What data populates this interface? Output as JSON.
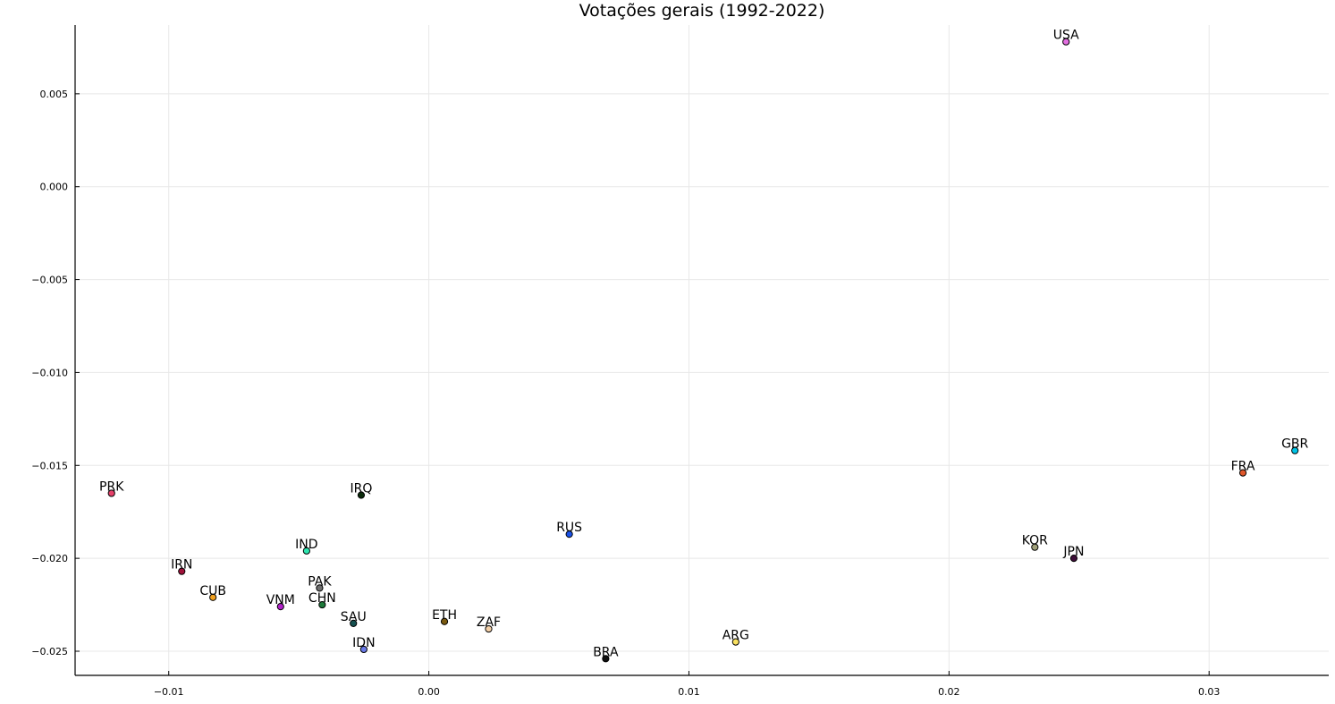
{
  "chart_data": {
    "type": "scatter",
    "title": "Votações gerais (1992-2022)",
    "xlabel": "",
    "ylabel": "",
    "xlim": [
      -0.0136,
      0.0346
    ],
    "ylim": [
      -0.0263,
      0.0087
    ],
    "xticks": [
      -0.01,
      0.0,
      0.01,
      0.02,
      0.03
    ],
    "xtick_labels": [
      "−0.01",
      "0.00",
      "0.01",
      "0.02",
      "0.03"
    ],
    "yticks": [
      0.005,
      0.0,
      -0.005,
      -0.01,
      -0.015,
      -0.02,
      -0.025
    ],
    "ytick_labels": [
      "0.005",
      "0.000",
      "−0.005",
      "−0.010",
      "−0.015",
      "−0.020",
      "−0.025"
    ],
    "grid": true,
    "legend": "none",
    "points": [
      {
        "label": "USA",
        "x": 0.0245,
        "y": 0.0078,
        "color": "#e26ee0"
      },
      {
        "label": "GBR",
        "x": 0.0333,
        "y": -0.0142,
        "color": "#00c4e6"
      },
      {
        "label": "FRA",
        "x": 0.0313,
        "y": -0.0154,
        "color": "#e0572a"
      },
      {
        "label": "KOR",
        "x": 0.0233,
        "y": -0.0194,
        "color": "#a0a07a"
      },
      {
        "label": "JPN",
        "x": 0.0248,
        "y": -0.02,
        "color": "#3d0d38"
      },
      {
        "label": "PRK",
        "x": -0.0122,
        "y": -0.0165,
        "color": "#e6406a"
      },
      {
        "label": "IRQ",
        "x": -0.0026,
        "y": -0.0166,
        "color": "#0a2a0a"
      },
      {
        "label": "RUS",
        "x": 0.0054,
        "y": -0.0187,
        "color": "#1a52e8"
      },
      {
        "label": "IND",
        "x": -0.0047,
        "y": -0.0196,
        "color": "#2ee6b0"
      },
      {
        "label": "IRN",
        "x": -0.0095,
        "y": -0.0207,
        "color": "#a0123a"
      },
      {
        "label": "PAK",
        "x": -0.0042,
        "y": -0.0216,
        "color": "#6e6e6e"
      },
      {
        "label": "CUB",
        "x": -0.0083,
        "y": -0.0221,
        "color": "#f0a020"
      },
      {
        "label": "VNM",
        "x": -0.0057,
        "y": -0.0226,
        "color": "#b020c8"
      },
      {
        "label": "CHN",
        "x": -0.0041,
        "y": -0.0225,
        "color": "#1e7a3a"
      },
      {
        "label": "SAU",
        "x": -0.0029,
        "y": -0.0235,
        "color": "#145050"
      },
      {
        "label": "ETH",
        "x": 0.0006,
        "y": -0.0234,
        "color": "#7a5a10"
      },
      {
        "label": "ZAF",
        "x": 0.0023,
        "y": -0.0238,
        "color": "#f4d0a8"
      },
      {
        "label": "ARG",
        "x": 0.0118,
        "y": -0.0245,
        "color": "#f8e060"
      },
      {
        "label": "IDN",
        "x": -0.0025,
        "y": -0.0249,
        "color": "#6a7ae8"
      },
      {
        "label": "BRA",
        "x": 0.0068,
        "y": -0.0254,
        "color": "#101010"
      }
    ]
  }
}
